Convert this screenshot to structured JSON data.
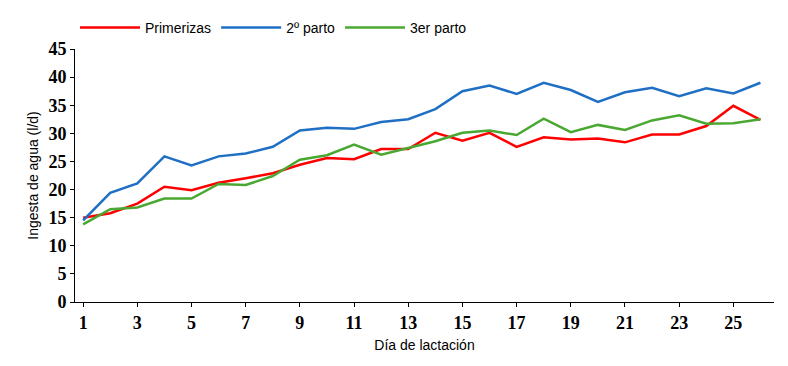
{
  "chart_data": {
    "type": "line",
    "x_label": "Día de lactación",
    "y_label": "Ingesta de agua (l/d)",
    "x": [
      1,
      2,
      3,
      4,
      5,
      6,
      7,
      8,
      9,
      10,
      11,
      12,
      13,
      14,
      15,
      16,
      17,
      18,
      19,
      20,
      21,
      22,
      23,
      24,
      25,
      26
    ],
    "series": [
      {
        "name": "Primerizas",
        "color": "#ff0000",
        "values": [
          15,
          15.8,
          17.5,
          20.5,
          19.9,
          21.2,
          22,
          22.9,
          24.4,
          25.6,
          25.4,
          27.2,
          27.2,
          30.1,
          28.7,
          30.1,
          27.6,
          29.3,
          28.9,
          29.1,
          28.4,
          29.8,
          29.8,
          31.3,
          34.9,
          32.4
        ]
      },
      {
        "name": "2º parto",
        "color": "#1f6fc5",
        "values": [
          14.5,
          19.4,
          21.1,
          25.9,
          24.3,
          25.9,
          26.4,
          27.6,
          30.5,
          31,
          30.8,
          32,
          32.5,
          34.3,
          37.5,
          38.5,
          37,
          39,
          37.7,
          35.6,
          37.3,
          38.1,
          36.6,
          38,
          37.1,
          39
        ]
      },
      {
        "name": "3er parto",
        "color": "#4aa832",
        "values": [
          13.8,
          16.5,
          16.8,
          18.4,
          18.4,
          21,
          20.8,
          22.4,
          25.3,
          26.1,
          28,
          26.2,
          27.4,
          28.6,
          30.1,
          30.5,
          29.7,
          32.6,
          30.2,
          31.5,
          30.6,
          32.3,
          33.2,
          31.7,
          31.8,
          32.5
        ]
      }
    ],
    "xlim": [
      0.7,
      26.5
    ],
    "xticks": [
      1,
      3,
      5,
      7,
      9,
      11,
      13,
      15,
      17,
      19,
      21,
      23,
      25
    ],
    "ylim": [
      0,
      45
    ],
    "yticks": [
      0,
      5,
      10,
      15,
      20,
      25,
      30,
      35,
      40,
      45
    ],
    "grid": false,
    "legend": "top"
  }
}
